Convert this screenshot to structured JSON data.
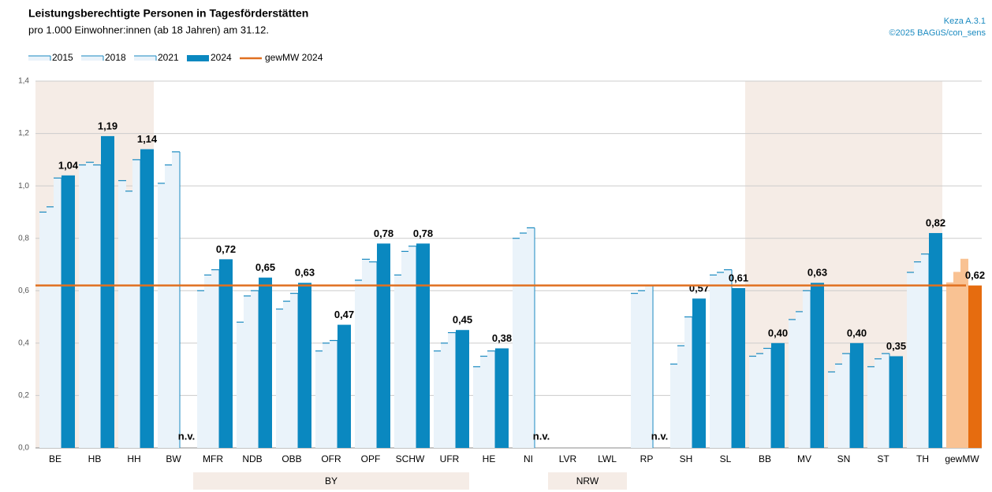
{
  "chart_data": {
    "type": "bar",
    "title": "Leistungsberechtigte Personen in Tagesförderstätten",
    "subtitle": "pro 1.000 Einwohner:innen (ab 18 Jahren) am 31.12.",
    "source": [
      "Keza A.3.1",
      "©2025 BAGüS/con_sens"
    ],
    "categories": [
      "BE",
      "HB",
      "HH",
      "BW",
      "MFR",
      "NDB",
      "OBB",
      "OFR",
      "OPF",
      "SCHW",
      "UFR",
      "HE",
      "NI",
      "LVR",
      "LWL",
      "RP",
      "SH",
      "SL",
      "BB",
      "MV",
      "SN",
      "ST",
      "TH",
      "gewMW"
    ],
    "series": [
      {
        "name": "2015",
        "style": "outline",
        "color": "#1a8ac0",
        "fill": "#eaf3fa",
        "values": [
          0.9,
          1.08,
          1.02,
          1.01,
          0.6,
          0.48,
          0.53,
          0.37,
          0.64,
          0.66,
          0.37,
          0.31,
          0.8,
          null,
          null,
          0.59,
          0.32,
          0.66,
          0.35,
          0.49,
          0.29,
          0.31,
          0.67,
          0.63
        ]
      },
      {
        "name": "2018",
        "style": "outline",
        "color": "#1a8ac0",
        "fill": "#eaf3fa",
        "values": [
          0.92,
          1.09,
          0.98,
          1.08,
          0.66,
          0.58,
          0.56,
          0.4,
          0.72,
          0.75,
          0.4,
          0.35,
          0.82,
          null,
          null,
          0.6,
          0.39,
          0.67,
          0.36,
          0.52,
          0.32,
          0.34,
          0.71,
          0.67
        ]
      },
      {
        "name": "2021",
        "style": "outline",
        "color": "#1a8ac0",
        "fill": "#eaf3fa",
        "values": [
          1.03,
          1.08,
          1.1,
          1.13,
          0.68,
          0.6,
          0.59,
          0.41,
          0.71,
          0.77,
          0.44,
          0.37,
          0.84,
          null,
          null,
          0.62,
          0.5,
          0.68,
          0.38,
          0.6,
          0.36,
          0.36,
          0.74,
          0.72
        ]
      },
      {
        "name": "2024",
        "style": "solid",
        "color": "#0a88c0",
        "values": [
          1.04,
          1.19,
          1.14,
          null,
          0.72,
          0.65,
          0.63,
          0.47,
          0.78,
          0.78,
          0.45,
          0.38,
          null,
          null,
          null,
          null,
          0.57,
          0.61,
          0.4,
          0.63,
          0.4,
          0.35,
          0.82,
          0.62
        ],
        "value_labels": [
          "1,04",
          "1,19",
          "1,14",
          "n.v.",
          "0,72",
          "0,65",
          "0,63",
          "0,47",
          "0,78",
          "0,78",
          "0,45",
          "0,38",
          "n.v.",
          null,
          null,
          "n.v.",
          "0,57",
          "0,61",
          "0,40",
          "0,63",
          "0,40",
          "0,35",
          "0,82",
          "0,62"
        ]
      }
    ],
    "reference_line": {
      "name": "gewMW 2024",
      "value": 0.62,
      "color": "#e07020"
    },
    "highlight": {
      "category_index": 23,
      "color": "#e66c0f",
      "fill": "#f9c293"
    },
    "shaded": [
      [
        0,
        2
      ],
      [
        18,
        22
      ]
    ],
    "groups": [
      {
        "label": "BY",
        "from": 4,
        "to": 10
      },
      {
        "label": "NRW",
        "from": 13,
        "to": 14
      }
    ],
    "ylim": [
      0,
      1.4
    ],
    "yticks": [
      {
        "value": 0,
        "label": "0,0"
      },
      {
        "value": 0.2,
        "label": "0,2"
      },
      {
        "value": 0.4,
        "label": "0,4"
      },
      {
        "value": 0.6,
        "label": "0,6"
      },
      {
        "value": 0.8,
        "label": "0,8"
      },
      {
        "value": 1.0,
        "label": "1,0"
      },
      {
        "value": 1.2,
        "label": "1,2"
      },
      {
        "value": 1.4,
        "label": "1,4"
      }
    ],
    "grid": true
  }
}
